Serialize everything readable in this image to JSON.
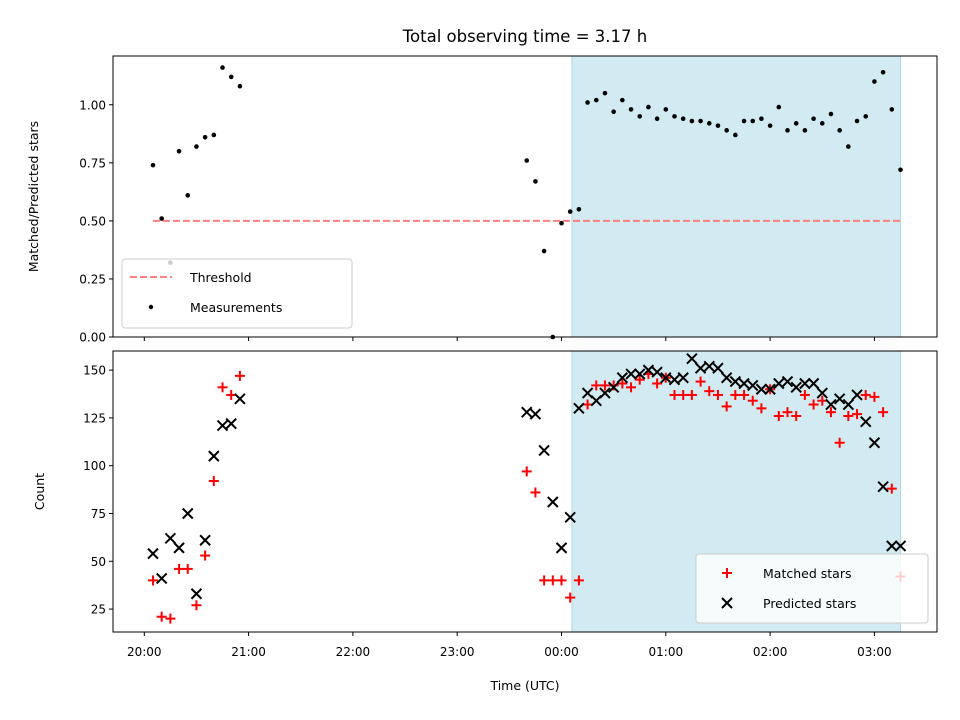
{
  "chart_data": {
    "title": "Total observing time = 3.17 h",
    "xlabel": "Time (UTC)",
    "x_ticks": [
      "20:00",
      "21:00",
      "22:00",
      "23:00",
      "00:00",
      "01:00",
      "02:00",
      "03:00"
    ],
    "x_range_hours": [
      19.7,
      27.6
    ],
    "highlight_span_hours": [
      24.1,
      27.25
    ],
    "colors": {
      "highlight": "#add8e6",
      "threshold": "#ff8080",
      "measurements": "#000000",
      "matched": "#ff0000",
      "predicted": "#000000"
    },
    "panels": [
      {
        "type": "scatter",
        "ylabel": "Matched/Predicted stars",
        "ylim": [
          0.0,
          1.21
        ],
        "y_ticks": [
          "0.00",
          "0.25",
          "0.50",
          "0.75",
          "1.00"
        ],
        "legend_position": "lower-left",
        "threshold": {
          "name": "Threshold",
          "value": 0.5,
          "x_start": "20:05",
          "x_end": "03:15",
          "style": "dashed"
        },
        "series": [
          {
            "name": "Measurements",
            "marker": "dot",
            "x": [
              "20:05",
              "20:10",
              "20:15",
              "20:20",
              "20:25",
              "20:30",
              "20:35",
              "20:40",
              "20:45",
              "20:50",
              "20:55",
              "23:40",
              "23:45",
              "23:50",
              "23:55",
              "00:00",
              "00:05",
              "00:10",
              "00:15",
              "00:20",
              "00:25",
              "00:30",
              "00:35",
              "00:40",
              "00:45",
              "00:50",
              "00:55",
              "01:00",
              "01:05",
              "01:10",
              "01:15",
              "01:20",
              "01:25",
              "01:30",
              "01:35",
              "01:40",
              "01:45",
              "01:50",
              "01:55",
              "02:00",
              "02:05",
              "02:10",
              "02:15",
              "02:20",
              "02:25",
              "02:30",
              "02:35",
              "02:40",
              "02:45",
              "02:50",
              "02:55",
              "03:00",
              "03:05",
              "03:10",
              "03:15"
            ],
            "y": [
              0.74,
              0.51,
              0.32,
              0.8,
              0.61,
              0.82,
              0.86,
              0.87,
              1.16,
              1.12,
              1.08,
              0.76,
              0.67,
              0.37,
              0.0,
              0.49,
              0.54,
              0.55,
              1.01,
              1.02,
              1.05,
              0.97,
              1.02,
              0.98,
              0.95,
              0.99,
              0.94,
              0.98,
              0.95,
              0.94,
              0.93,
              0.93,
              0.92,
              0.91,
              0.89,
              0.87,
              0.93,
              0.93,
              0.94,
              0.91,
              0.99,
              0.89,
              0.92,
              0.89,
              0.94,
              0.92,
              0.96,
              0.89,
              0.82,
              0.93,
              0.95,
              1.1,
              1.14,
              0.98,
              0.72
            ]
          }
        ]
      },
      {
        "type": "scatter",
        "ylabel": "Count",
        "ylim": [
          13,
          160
        ],
        "y_ticks": [
          "25",
          "50",
          "75",
          "100",
          "125",
          "150"
        ],
        "legend_position": "lower-right",
        "series": [
          {
            "name": "Matched stars",
            "marker": "plus",
            "x": [
              "20:05",
              "20:10",
              "20:15",
              "20:20",
              "20:25",
              "20:30",
              "20:35",
              "20:40",
              "20:45",
              "20:50",
              "20:55",
              "23:40",
              "23:45",
              "23:50",
              "23:55",
              "00:00",
              "00:05",
              "00:10",
              "00:15",
              "00:20",
              "00:25",
              "00:30",
              "00:35",
              "00:40",
              "00:45",
              "00:50",
              "00:55",
              "01:00",
              "01:05",
              "01:10",
              "01:15",
              "01:20",
              "01:25",
              "01:30",
              "01:35",
              "01:40",
              "01:45",
              "01:50",
              "01:55",
              "02:00",
              "02:05",
              "02:10",
              "02:15",
              "02:20",
              "02:25",
              "02:30",
              "02:35",
              "02:40",
              "02:45",
              "02:50",
              "02:55",
              "03:00",
              "03:05",
              "03:10",
              "03:15"
            ],
            "y": [
              40,
              21,
              20,
              46,
              46,
              27,
              53,
              92,
              141,
              137,
              147,
              97,
              86,
              40,
              40,
              40,
              31,
              40,
              132,
              142,
              142,
              142,
              143,
              141,
              145,
              148,
              143,
              146,
              137,
              137,
              137,
              144,
              139,
              137,
              131,
              137,
              137,
              134,
              130,
              140,
              126,
              128,
              126,
              137,
              132,
              134,
              128,
              112,
              126,
              127,
              137,
              136,
              128,
              88,
              42
            ]
          },
          {
            "name": "Predicted stars",
            "marker": "x",
            "x": [
              "20:05",
              "20:10",
              "20:15",
              "20:20",
              "20:25",
              "20:30",
              "20:35",
              "20:40",
              "20:45",
              "20:50",
              "20:55",
              "23:40",
              "23:45",
              "23:50",
              "23:55",
              "00:00",
              "00:05",
              "00:10",
              "00:15",
              "00:20",
              "00:25",
              "00:30",
              "00:35",
              "00:40",
              "00:45",
              "00:50",
              "00:55",
              "01:00",
              "01:05",
              "01:10",
              "01:15",
              "01:20",
              "01:25",
              "01:30",
              "01:35",
              "01:40",
              "01:45",
              "01:50",
              "01:55",
              "02:00",
              "02:05",
              "02:10",
              "02:15",
              "02:20",
              "02:25",
              "02:30",
              "02:35",
              "02:40",
              "02:45",
              "02:50",
              "02:55",
              "03:00",
              "03:05",
              "03:10",
              "03:15"
            ],
            "y": [
              54,
              41,
              62,
              57,
              75,
              33,
              61,
              105,
              121,
              122,
              135,
              128,
              127,
              108,
              81,
              57,
              73,
              130,
              138,
              134,
              138,
              141,
              146,
              148,
              148,
              150,
              149,
              146,
              145,
              146,
              156,
              151,
              152,
              151,
              146,
              144,
              143,
              142,
              140,
              140,
              143,
              144,
              141,
              143,
              143,
              138,
              132,
              135,
              132,
              137,
              123,
              112,
              89,
              58,
              58
            ]
          }
        ]
      }
    ]
  }
}
